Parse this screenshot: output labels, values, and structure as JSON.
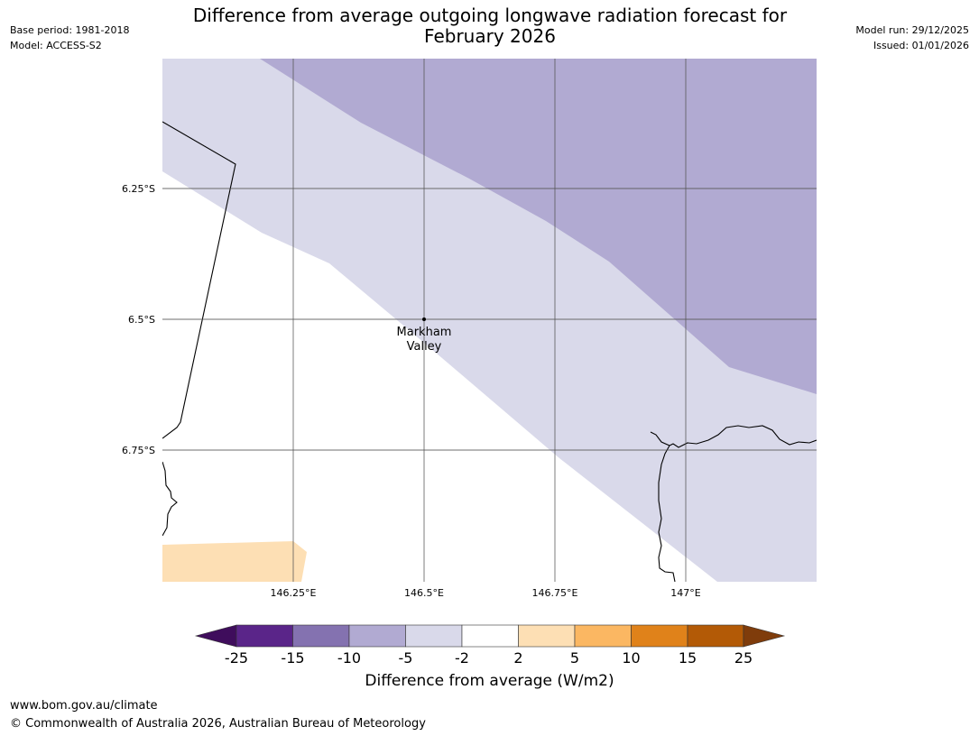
{
  "header": {
    "title_line1": "Difference from average outgoing longwave radiation forecast for",
    "title_line2": "February 2026",
    "base_period": "Base period: 1981-2018",
    "model": "Model: ACCESS-S2",
    "model_run": "Model run: 29/12/2025",
    "issued": "Issued: 01/01/2026"
  },
  "map": {
    "lat_labels": [
      "6.25°S",
      "6.5°S",
      "6.75°S"
    ],
    "lon_labels": [
      "146.25°E",
      "146.5°E",
      "146.75°E",
      "147°E"
    ],
    "place": {
      "name_line1": "Markham",
      "name_line2": "Valley"
    }
  },
  "colorbar": {
    "ticks": [
      "-25",
      "-15",
      "-10",
      "-5",
      "-2",
      "2",
      "5",
      "10",
      "15",
      "25"
    ],
    "colors": [
      "#3f0d5c",
      "#5a2589",
      "#8472b0",
      "#b1aad2",
      "#d9d9ea",
      "#ffffff",
      "#fddfb4",
      "#fbb762",
      "#e0821a",
      "#b35a06",
      "#7f3c0b"
    ],
    "label": "Difference from average (W/m2)"
  },
  "footer": {
    "url": "www.bom.gov.au/climate",
    "copyright": "© Commonwealth of Australia 2026, Australian Bureau of Meteorology"
  }
}
